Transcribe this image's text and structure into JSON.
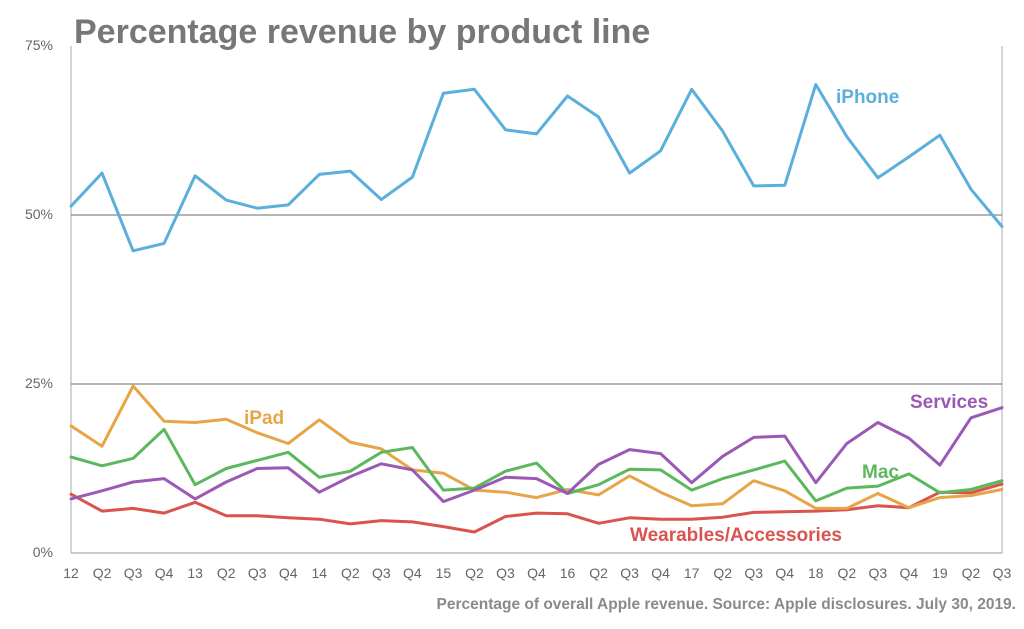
{
  "chart_data": {
    "type": "line",
    "title": "Percentage revenue by product line",
    "source_note": "Percentage of overall Apple revenue. Source: Apple disclosures. July 30, 2019.",
    "xlabel": "",
    "ylabel": "",
    "ylim": [
      0,
      75
    ],
    "y_ticks": [
      "0%",
      "25%",
      "50%",
      "75%"
    ],
    "y_tick_values": [
      0,
      25,
      50,
      75
    ],
    "grid_lines_at": [
      25,
      50
    ],
    "categories": [
      "12",
      "Q2",
      "Q3",
      "Q4",
      "13",
      "Q2",
      "Q3",
      "Q4",
      "14",
      "Q2",
      "Q3",
      "Q4",
      "15",
      "Q2",
      "Q3",
      "Q4",
      "16",
      "Q2",
      "Q3",
      "Q4",
      "17",
      "Q2",
      "Q3",
      "Q4",
      "18",
      "Q2",
      "Q3",
      "Q4",
      "19",
      "Q2",
      "Q3"
    ],
    "series": [
      {
        "name": "iPhone",
        "label": "iPhone",
        "color": "#5aafdc",
        "values": [
          51.3,
          56.2,
          44.7,
          45.8,
          55.8,
          52.2,
          51.0,
          51.5,
          56.0,
          56.5,
          52.3,
          55.6,
          68.0,
          68.6,
          62.6,
          62.0,
          67.6,
          64.5,
          56.2,
          59.5,
          68.6,
          62.4,
          54.3,
          54.4,
          69.3,
          61.6,
          55.5,
          58.6,
          61.8,
          53.8,
          48.3
        ]
      },
      {
        "name": "Services",
        "label": "Services",
        "color": "#9b59b6",
        "values": [
          8.0,
          9.2,
          10.5,
          11.0,
          8.0,
          10.5,
          12.5,
          12.6,
          9.0,
          11.3,
          13.2,
          12.3,
          7.6,
          9.3,
          11.2,
          11.0,
          8.8,
          13.1,
          15.3,
          14.7,
          10.4,
          14.3,
          17.1,
          17.3,
          10.4,
          16.2,
          19.3,
          17.0,
          13.0,
          20.0,
          21.5
        ]
      },
      {
        "name": "iPad",
        "label": "iPad",
        "color": "#e8a548",
        "values": [
          18.8,
          15.8,
          24.7,
          19.5,
          19.3,
          19.8,
          17.8,
          16.2,
          19.7,
          16.4,
          15.4,
          12.3,
          11.8,
          9.3,
          9.0,
          8.2,
          9.4,
          8.6,
          11.4,
          9.0,
          7.0,
          7.3,
          10.7,
          9.2,
          6.6,
          6.6,
          8.8,
          6.7,
          8.2,
          8.5,
          9.4
        ]
      },
      {
        "name": "Mac",
        "label": "Mac",
        "color": "#5cb85c",
        "values": [
          14.2,
          12.9,
          14.0,
          18.3,
          10.1,
          12.5,
          13.7,
          14.9,
          11.2,
          12.1,
          14.9,
          15.6,
          9.3,
          9.6,
          12.1,
          13.3,
          8.8,
          10.1,
          12.4,
          12.3,
          9.3,
          11.0,
          12.3,
          13.6,
          7.7,
          9.6,
          9.9,
          11.7,
          8.9,
          9.4,
          10.7
        ]
      },
      {
        "name": "Wearables/Accessories",
        "label": "Wearables/Accessories",
        "color": "#d9534f",
        "values": [
          8.7,
          6.2,
          6.6,
          5.9,
          7.5,
          5.5,
          5.5,
          5.2,
          5.0,
          4.3,
          4.8,
          4.6,
          3.9,
          3.1,
          5.4,
          5.9,
          5.8,
          4.4,
          5.2,
          5.0,
          5.0,
          5.3,
          6.0,
          6.1,
          6.2,
          6.4,
          7.0,
          6.7,
          9.0,
          8.9,
          10.2
        ]
      }
    ]
  }
}
